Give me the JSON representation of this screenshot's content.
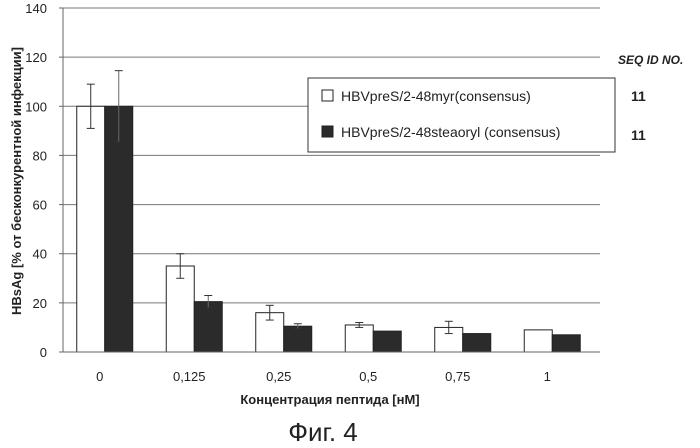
{
  "chart_data": {
    "type": "bar",
    "title": "",
    "xlabel": "Концентрация пептида [нМ]",
    "ylabel": "HBsAg [% от бесконкурентной инфекции]",
    "ylim": [
      0,
      140
    ],
    "yticks": [
      0,
      20,
      40,
      60,
      80,
      100,
      120,
      140
    ],
    "categories": [
      "0",
      "0,125",
      "0,25",
      "0,5",
      "0,75",
      "1"
    ],
    "grid": "horizontal",
    "legend_position": "right",
    "series": [
      {
        "name": "HBVpreS/2-48myr(consensus)",
        "fill": "#ffffff",
        "values": [
          100,
          35,
          16,
          11,
          10,
          9
        ],
        "errors": [
          9,
          5,
          3,
          1,
          2.5,
          null
        ]
      },
      {
        "name": "HBVpreS/2-48steaoryl (consensus)",
        "fill": "#2b2b2b",
        "values": [
          100,
          20.5,
          10.5,
          8.5,
          7.5,
          7
        ],
        "errors": [
          14.5,
          2.5,
          1,
          null,
          null,
          null
        ]
      }
    ]
  },
  "seq_id": {
    "header": "SEQ ID NO.",
    "values": [
      "11",
      "11"
    ]
  },
  "caption": "Фиг. 4"
}
